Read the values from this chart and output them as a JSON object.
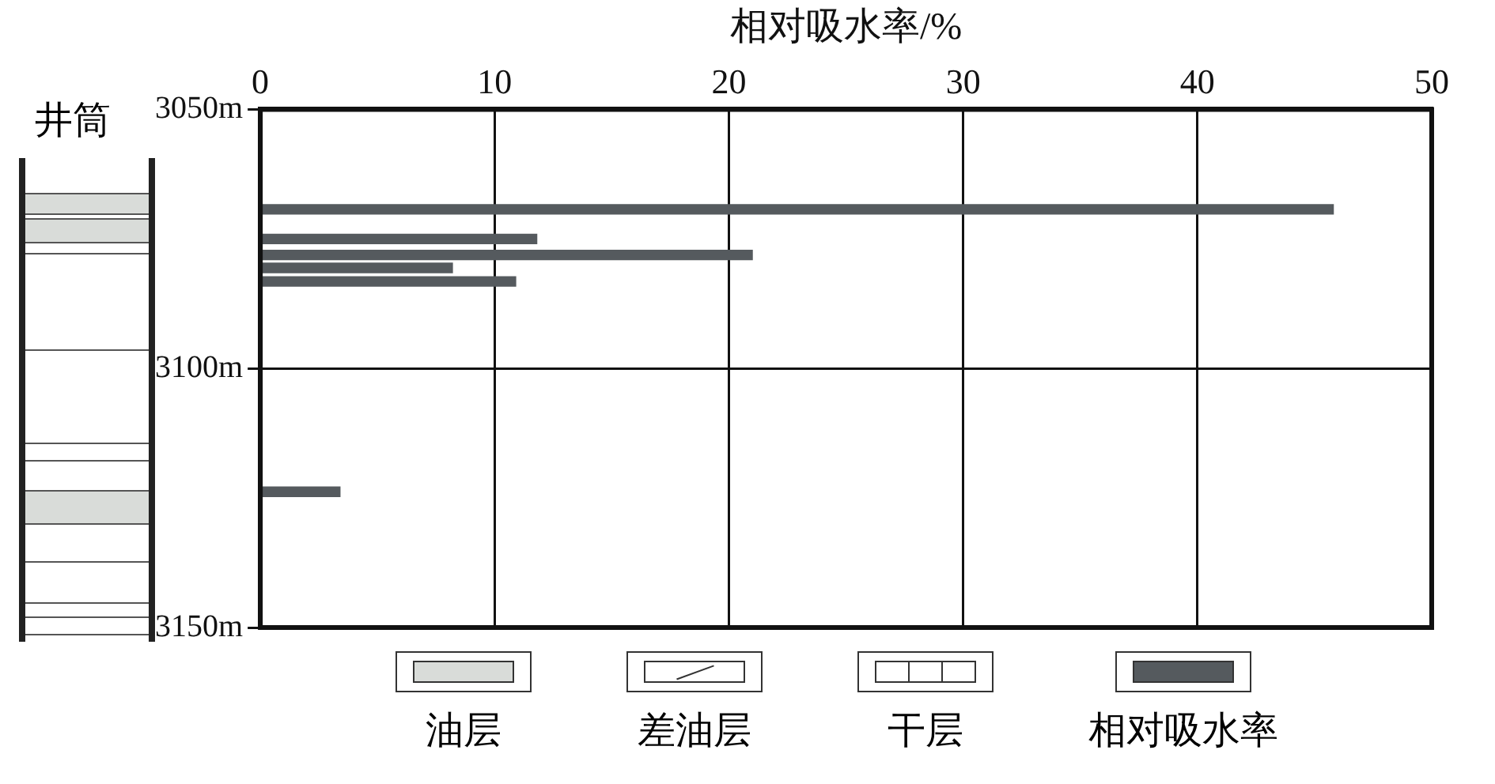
{
  "chart_data": {
    "type": "bar",
    "orientation": "horizontal",
    "xlabel": "相对吸水率/%",
    "x": [
      3069.3,
      3075,
      3078.1,
      3080.6,
      3083.2,
      3123.8
    ],
    "series": [
      {
        "name": "油层",
        "color": "#d9dcd9",
        "values": [
          null,
          null,
          null,
          null,
          null,
          null
        ]
      },
      {
        "name": "差油层",
        "color": "#ffffff",
        "values": [
          null,
          null,
          null,
          null,
          null,
          null
        ]
      },
      {
        "name": "干层",
        "color": "#ffffff",
        "values": [
          null,
          null,
          null,
          null,
          null,
          null
        ]
      },
      {
        "name": "相对吸水率",
        "color": "#555a5e",
        "values": [
          45.8,
          11.8,
          21.0,
          8.2,
          10.9,
          3.4
        ]
      }
    ],
    "xlim": [
      0,
      50
    ],
    "xticks": [
      0,
      10,
      20,
      30,
      40,
      50
    ],
    "ylim": [
      3150,
      3050
    ],
    "yticks": [
      {
        "value": 3050,
        "label": "3050m"
      },
      {
        "value": 3100,
        "label": "3100m"
      },
      {
        "value": 3150,
        "label": "3150m"
      }
    ],
    "grid": true,
    "legend": "bottom",
    "annotations": [
      "井筒"
    ]
  }
}
